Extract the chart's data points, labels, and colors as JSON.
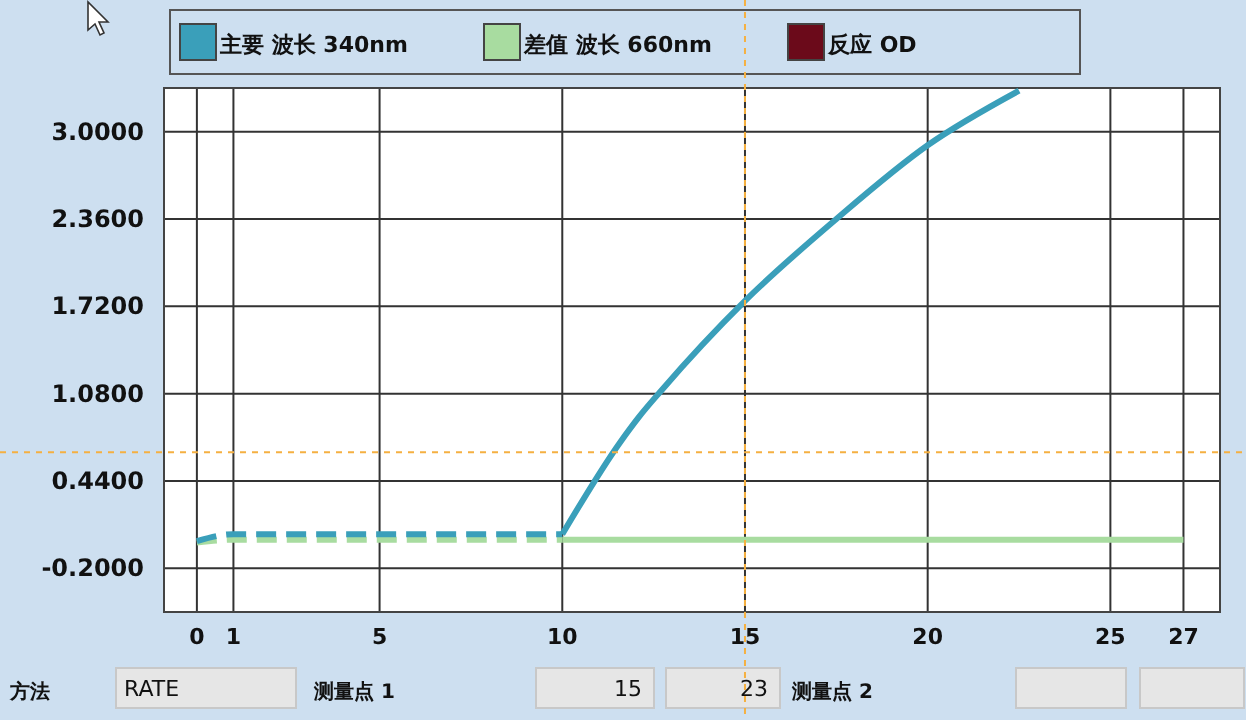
{
  "chart_data": {
    "type": "line",
    "xlim": [
      -0.9,
      28
    ],
    "xticks": [
      0,
      1,
      5,
      10,
      15,
      20,
      25,
      27
    ],
    "ylim": [
      -0.52,
      3.32
    ],
    "yticks": [
      {
        "value": 3,
        "label": "3.0000"
      },
      {
        "value": 2.36,
        "label": "2.3600"
      },
      {
        "value": 1.72,
        "label": "1.7200"
      },
      {
        "value": 1.08,
        "label": "1.0800"
      },
      {
        "value": 0.44,
        "label": "0.4400"
      },
      {
        "value": -0.2,
        "label": "-0.2000"
      }
    ],
    "grid": true,
    "legend": "top",
    "series": [
      {
        "name": "主要 波长 340nm",
        "color": "#3a9fba",
        "line_style": "solid",
        "x": [
          10,
          11.6,
          12.1,
          12.7,
          15,
          17.5,
          20,
          22.5
        ],
        "values": [
          0.05,
          0.73,
          0.91,
          1.1,
          1.76,
          2.36,
          2.9,
          3.3
        ]
      },
      {
        "name": "差值 波长 660nm",
        "color": "#a8dca0",
        "line_style": "solid",
        "x": [
          10,
          27
        ],
        "values": [
          0.01,
          0.01
        ]
      },
      {
        "name": "反应 OD",
        "color": "#6b0a1a"
      },
      {
        "color": "#a8dca0",
        "line_style": "dashed",
        "x": [
          0,
          1,
          10
        ],
        "values": [
          -0.01,
          0.01,
          0.01
        ]
      },
      {
        "color": "#3a9fba",
        "line_style": "dashed",
        "x": [
          0,
          1,
          10
        ],
        "values": [
          0.0,
          0.05,
          0.05
        ]
      }
    ],
    "ref_lines": [
      {
        "axis": "x",
        "value": 15,
        "color": "#f5b041",
        "line_style": "dotted"
      },
      {
        "axis": "y",
        "value": 0.65,
        "color": "#f5b041",
        "line_style": "dotted"
      }
    ],
    "annotations": [
      "方法",
      "RATE",
      "测量点 1",
      "15",
      "23",
      "测量点 2"
    ]
  }
}
